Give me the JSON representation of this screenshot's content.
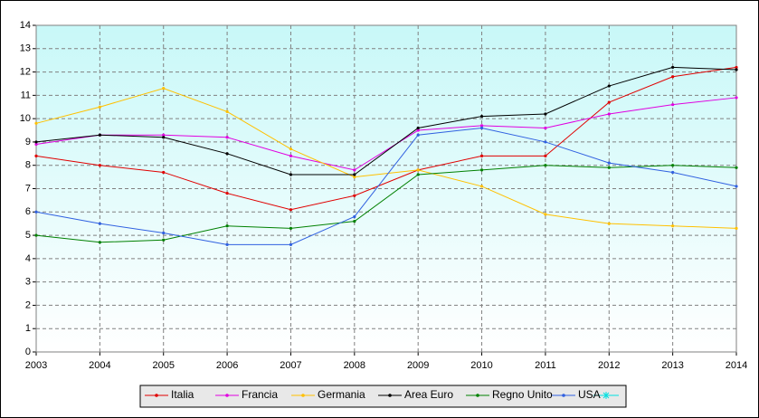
{
  "chart_data": {
    "type": "line",
    "x": [
      2003,
      2004,
      2005,
      2006,
      2007,
      2008,
      2009,
      2010,
      2011,
      2012,
      2013,
      2014
    ],
    "xlim": [
      2003,
      2014
    ],
    "xticks": [
      2003,
      2004,
      2005,
      2006,
      2007,
      2008,
      2009,
      2010,
      2011,
      2012,
      2013,
      2014
    ],
    "ylim": [
      0,
      14
    ],
    "yticks": [
      0,
      1,
      2,
      3,
      4,
      5,
      6,
      7,
      8,
      9,
      10,
      11,
      12,
      13,
      14
    ],
    "grid": true,
    "legend": "bottom",
    "series": [
      {
        "name": "Italia",
        "color": "#e00000",
        "values": [
          8.4,
          8.0,
          7.7,
          6.8,
          6.1,
          6.7,
          7.8,
          8.4,
          8.4,
          10.7,
          11.8,
          12.2
        ]
      },
      {
        "name": "Francia",
        "color": "#e000e0",
        "values": [
          8.9,
          9.3,
          9.3,
          9.2,
          8.4,
          7.8,
          9.5,
          9.7,
          9.6,
          10.2,
          10.6,
          10.9
        ]
      },
      {
        "name": "Germania",
        "color": "#ffc000",
        "values": [
          9.8,
          10.5,
          11.3,
          10.3,
          8.7,
          7.5,
          7.8,
          7.1,
          5.9,
          5.5,
          5.4,
          5.3
        ]
      },
      {
        "name": "Area Euro",
        "color": "#000000",
        "values": [
          9.0,
          9.3,
          9.2,
          8.5,
          7.6,
          7.6,
          9.6,
          10.1,
          10.2,
          11.4,
          12.2,
          12.1
        ]
      },
      {
        "name": "Regno Unito",
        "color": "#008000",
        "values": [
          5.0,
          4.7,
          4.8,
          5.4,
          5.3,
          5.6,
          7.6,
          7.8,
          8.0,
          7.9,
          8.0,
          7.9
        ]
      },
      {
        "name": "USA",
        "color": "#3060e0",
        "values": [
          6.0,
          5.5,
          5.1,
          4.6,
          4.6,
          5.8,
          9.3,
          9.6,
          9.0,
          8.1,
          7.7,
          7.1
        ]
      }
    ]
  }
}
